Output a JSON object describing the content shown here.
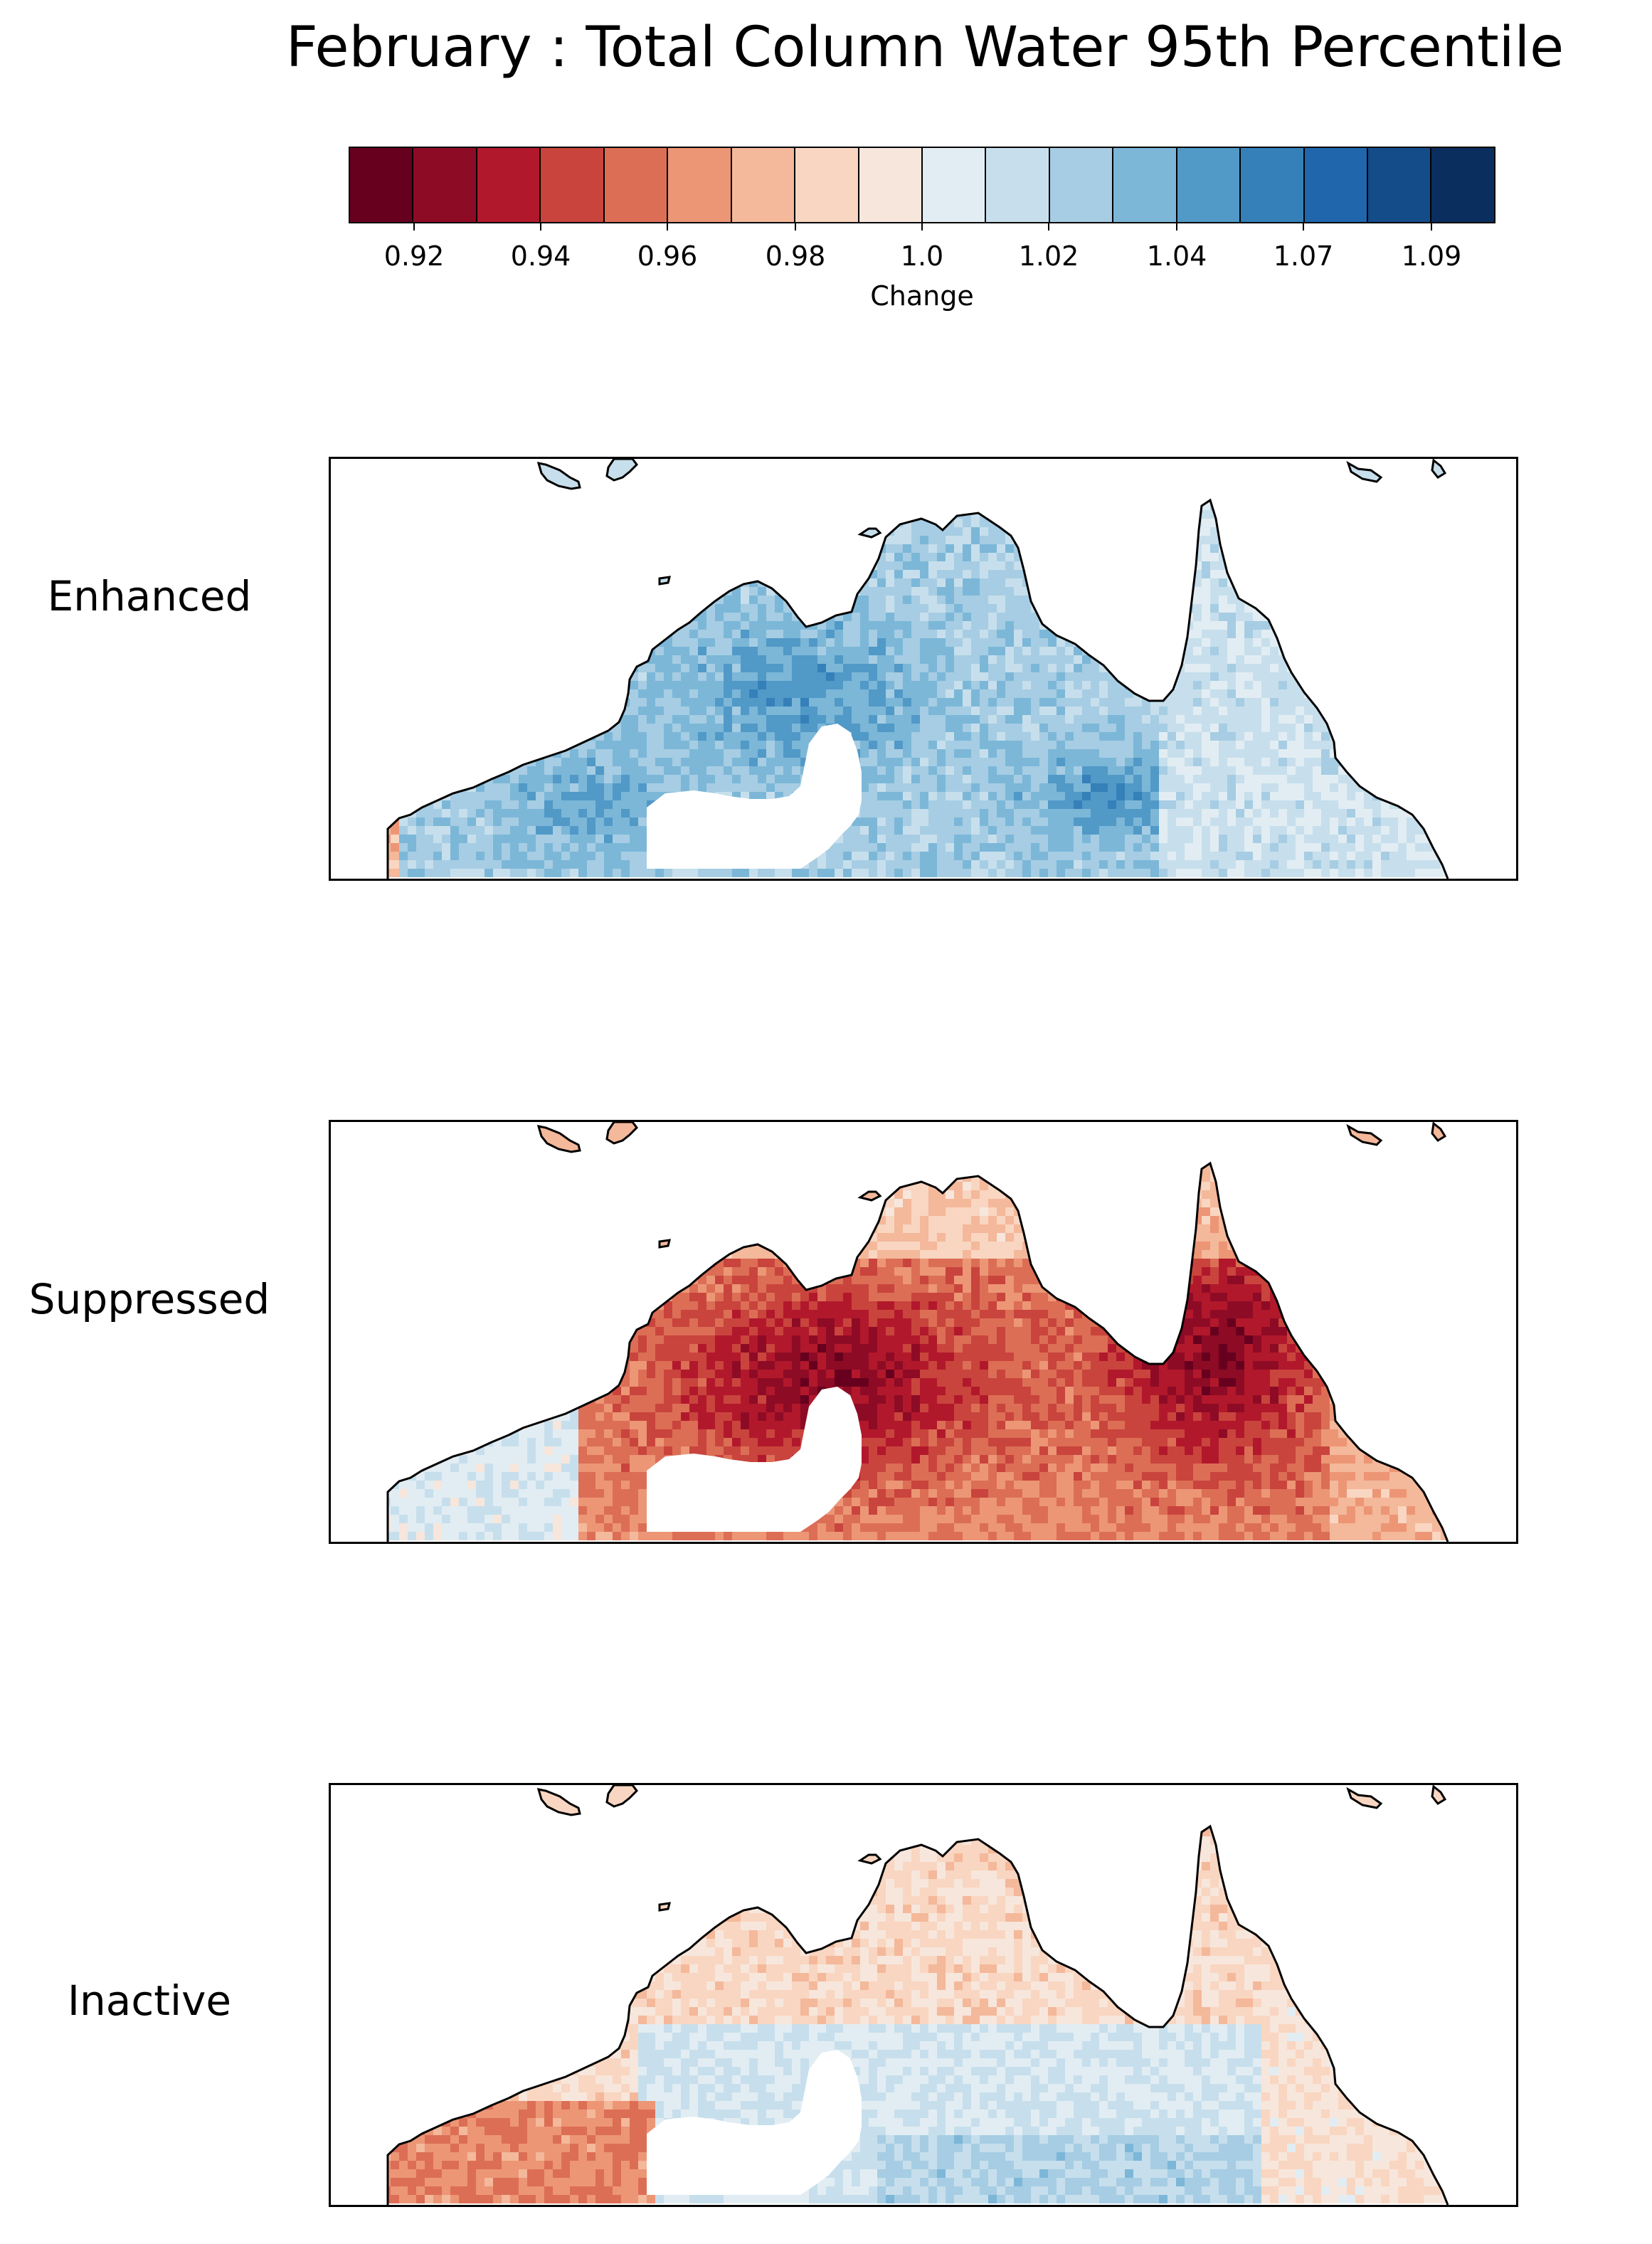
{
  "chart_data": {
    "type": "heatmap",
    "title": "February :  Total Column Water 95th Percentile",
    "colorbar": {
      "label": "Change",
      "tick_labels": [
        "0.92",
        "0.94",
        "0.96",
        "0.98",
        "1.0",
        "1.02",
        "1.04",
        "1.07",
        "1.09"
      ],
      "colors": [
        "#67001f",
        "#8e0b25",
        "#b2182b",
        "#c9443d",
        "#dc6e56",
        "#ec9676",
        "#f4b89a",
        "#f9d6c1",
        "#f7e6dc",
        "#e2edf3",
        "#c7dfec",
        "#a6cde3",
        "#7cb7d8",
        "#5199c7",
        "#3580b9",
        "#2066ac",
        "#144c8a",
        "#0a2e5e"
      ]
    },
    "panels": [
      {
        "label": "Enhanced",
        "description_values": "mostly above 1.0 (blue)",
        "bias": 1
      },
      {
        "label": "Suppressed",
        "description_values": "mostly below 1.0 (red)",
        "bias": -1
      },
      {
        "label": "Inactive",
        "description_values": "mixed near 1.0",
        "bias": 0
      }
    ]
  }
}
